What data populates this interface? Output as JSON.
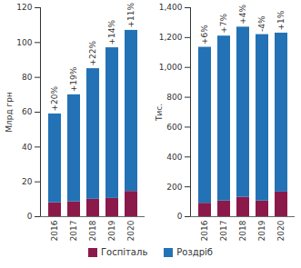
{
  "chart_data": [
    {
      "type": "bar",
      "stacked": true,
      "y_label": "Млрд грн",
      "categories": [
        "2016",
        "2017",
        "2018",
        "2019",
        "2020"
      ],
      "series": [
        {
          "name": "Госпіталь",
          "color": "#8b1a4b",
          "values": [
            8,
            8.5,
            10,
            10.5,
            14.5
          ]
        },
        {
          "name": "Роздріб",
          "color": "#2272b5",
          "values": [
            51,
            61.5,
            75,
            86.5,
            92.5
          ]
        }
      ],
      "annotations": [
        "+20%",
        "+19%",
        "+22%",
        "+14%",
        "+11%"
      ],
      "ylim": [
        0,
        120
      ],
      "yticks": [
        0,
        20,
        40,
        60,
        80,
        100,
        120
      ],
      "grid": false,
      "legend": "bottom"
    },
    {
      "type": "bar",
      "stacked": true,
      "y_label": "Тис.",
      "categories": [
        "2016",
        "2017",
        "2018",
        "2019",
        "2020"
      ],
      "series": [
        {
          "name": "Госпіталь",
          "color": "#8b1a4b",
          "values": [
            90,
            105,
            130,
            105,
            165
          ]
        },
        {
          "name": "Роздріб",
          "color": "#2272b5",
          "values": [
            1045,
            1105,
            1140,
            1115,
            1065
          ]
        }
      ],
      "annotations": [
        "+6%",
        "+7%",
        "+4%",
        "-4%",
        "+1%"
      ],
      "ylim": [
        0,
        1400
      ],
      "yticks": [
        0,
        200,
        400,
        600,
        800,
        1000,
        1200,
        1400
      ],
      "grid": false,
      "legend": "bottom"
    }
  ]
}
